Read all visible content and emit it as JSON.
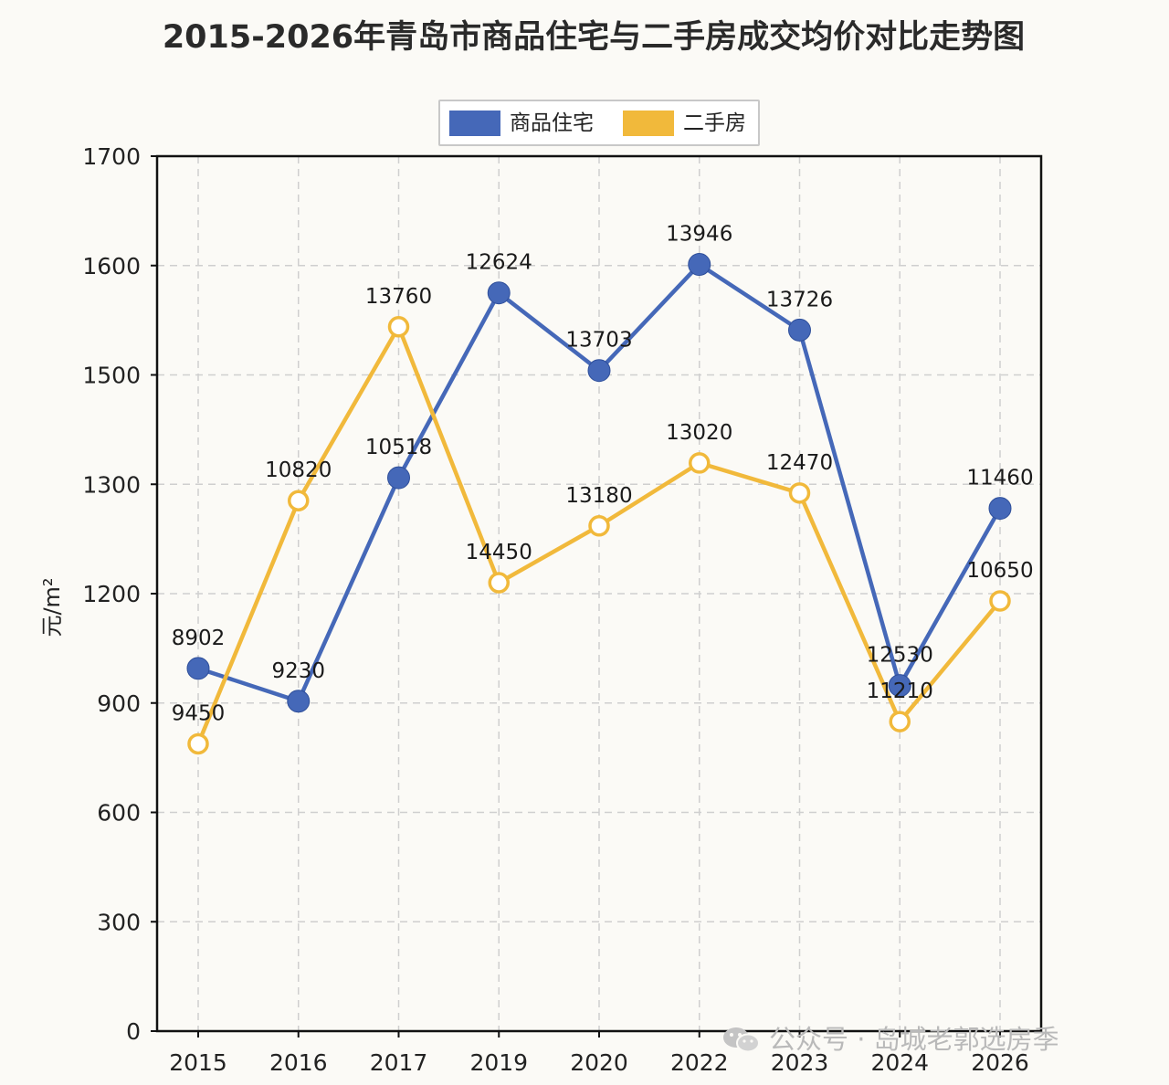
{
  "chart_data": {
    "type": "line",
    "title": "2015-2026年青岛市商品住宅与二手房成交均价对比走势图",
    "ylabel": "元/m²",
    "xlabel": "",
    "categories": [
      "2015",
      "2016",
      "2017",
      "2019",
      "2020",
      "2022",
      "2023",
      "2024",
      "2026"
    ],
    "y_ticks": [
      0,
      300,
      600,
      900,
      1200,
      1300,
      1500,
      1600,
      1700
    ],
    "grid": true,
    "legend_position": "top-center",
    "series": [
      {
        "name": "商品住宅",
        "color": "#4568b8",
        "marker": "filled-circle",
        "plot_values": [
          995,
          905,
          1312,
          1575,
          1504,
          1601,
          1541,
          948,
          1278
        ],
        "labels": [
          "8902",
          "9230",
          "10518",
          "12624",
          "13703",
          "13946",
          "13726",
          "12530",
          "11460"
        ]
      },
      {
        "name": "二手房",
        "color": "#f1b93b",
        "marker": "hollow-circle",
        "plot_values": [
          788,
          1285,
          1544,
          1210,
          1262,
          1339,
          1292,
          849,
          1180
        ],
        "labels": [
          "9450",
          "10820",
          "13760",
          "14450",
          "13180",
          "13020",
          "12470",
          "11210",
          "10650"
        ]
      }
    ]
  },
  "watermark": {
    "icon": "wechat-icon",
    "text": "公众号 · 岛城老郭选房季"
  }
}
